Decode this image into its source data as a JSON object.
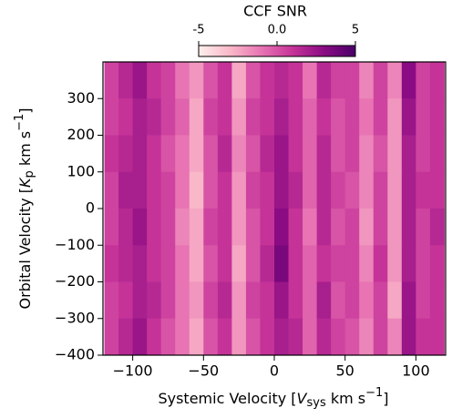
{
  "chart_data": {
    "type": "heatmap",
    "colorbar_label": "CCF SNR",
    "xlabel": {
      "before": "Systemic Velocity [",
      "var": "V",
      "sub": "sys",
      "unit": " km s",
      "sup": "−1",
      "after": "]"
    },
    "ylabel": {
      "before": "Orbital Velocity [",
      "var": "K",
      "sub": "p",
      "unit": " km s",
      "sup": "−1",
      "after": "]"
    },
    "x": [
      -115,
      -105,
      -95,
      -85,
      -75,
      -65,
      -55,
      -45,
      -35,
      -25,
      -15,
      -5,
      5,
      15,
      25,
      35,
      45,
      55,
      65,
      75,
      85,
      95,
      105,
      115
    ],
    "y": [
      350,
      250,
      150,
      50,
      -50,
      -150,
      -250,
      -350
    ],
    "z": [
      [
        0.5,
        1.5,
        2.5,
        1.0,
        0.5,
        -1.0,
        -2.0,
        0.0,
        1.0,
        -2.5,
        0.0,
        1.0,
        1.5,
        1.0,
        -1.0,
        1.5,
        0.5,
        0.5,
        -1.5,
        0.5,
        -1.5,
        3.0,
        0.5,
        1.0
      ],
      [
        0.5,
        1.0,
        2.0,
        1.5,
        0.5,
        -0.5,
        -2.5,
        0.5,
        1.0,
        -2.0,
        0.5,
        1.0,
        2.0,
        1.0,
        -0.5,
        1.0,
        0.0,
        0.5,
        -1.0,
        0.5,
        -2.0,
        2.5,
        0.5,
        1.0
      ],
      [
        1.0,
        1.5,
        2.0,
        1.0,
        0.0,
        -1.0,
        -2.5,
        0.0,
        1.5,
        -1.5,
        0.0,
        1.5,
        2.5,
        1.0,
        -0.5,
        1.5,
        0.0,
        0.5,
        -1.5,
        0.0,
        -2.0,
        2.0,
        0.5,
        1.0
      ],
      [
        0.5,
        2.0,
        2.0,
        1.0,
        0.5,
        -1.0,
        -3.0,
        0.0,
        1.0,
        -2.0,
        0.5,
        1.0,
        2.5,
        1.5,
        -0.5,
        1.5,
        0.5,
        0.0,
        -1.5,
        0.5,
        -2.0,
        2.0,
        1.0,
        1.0
      ],
      [
        0.5,
        1.5,
        2.5,
        1.0,
        0.5,
        -1.5,
        -2.5,
        0.5,
        1.0,
        -2.0,
        0.0,
        1.0,
        3.0,
        1.0,
        -1.0,
        1.5,
        0.0,
        0.5,
        -2.0,
        0.5,
        -2.0,
        2.0,
        0.5,
        1.5
      ],
      [
        1.0,
        1.5,
        2.0,
        1.0,
        0.5,
        -1.0,
        -2.5,
        0.0,
        1.0,
        -2.5,
        0.0,
        1.5,
        3.5,
        1.0,
        -0.5,
        1.0,
        0.5,
        0.5,
        -1.5,
        1.0,
        -2.0,
        2.0,
        0.5,
        1.0
      ],
      [
        0.5,
        1.0,
        2.0,
        1.5,
        0.5,
        -1.0,
        -2.0,
        0.5,
        1.5,
        -2.0,
        0.5,
        1.0,
        2.5,
        1.0,
        -0.5,
        2.0,
        0.0,
        0.5,
        -1.0,
        0.5,
        -2.5,
        2.5,
        0.5,
        1.0
      ],
      [
        0.5,
        1.5,
        2.5,
        1.0,
        0.0,
        -1.0,
        -2.5,
        0.0,
        1.0,
        -2.0,
        0.0,
        1.0,
        2.0,
        1.5,
        -0.5,
        1.5,
        0.5,
        0.0,
        -1.5,
        0.5,
        -1.5,
        2.5,
        1.0,
        1.0
      ]
    ],
    "xlim": [
      -121,
      121
    ],
    "ylim": [
      -400,
      400
    ],
    "xticks": [
      {
        "value": -100,
        "label": "−100"
      },
      {
        "value": -50,
        "label": "−50"
      },
      0,
      50,
      100
    ],
    "yticks": [
      {
        "value": -400,
        "label": "−400"
      },
      {
        "value": -300,
        "label": "−300"
      },
      {
        "value": -200,
        "label": "−200"
      },
      {
        "value": -100,
        "label": "−100"
      },
      0,
      100,
      200,
      300
    ],
    "clim": [
      -5,
      5
    ],
    "cticks": [
      -5,
      {
        "value": 0,
        "label": "0.0"
      },
      5
    ],
    "colormap": [
      "#fef0ec",
      "#f9b8c8",
      "#e874b4",
      "#c53398",
      "#8a0b83",
      "#4a006a"
    ]
  }
}
